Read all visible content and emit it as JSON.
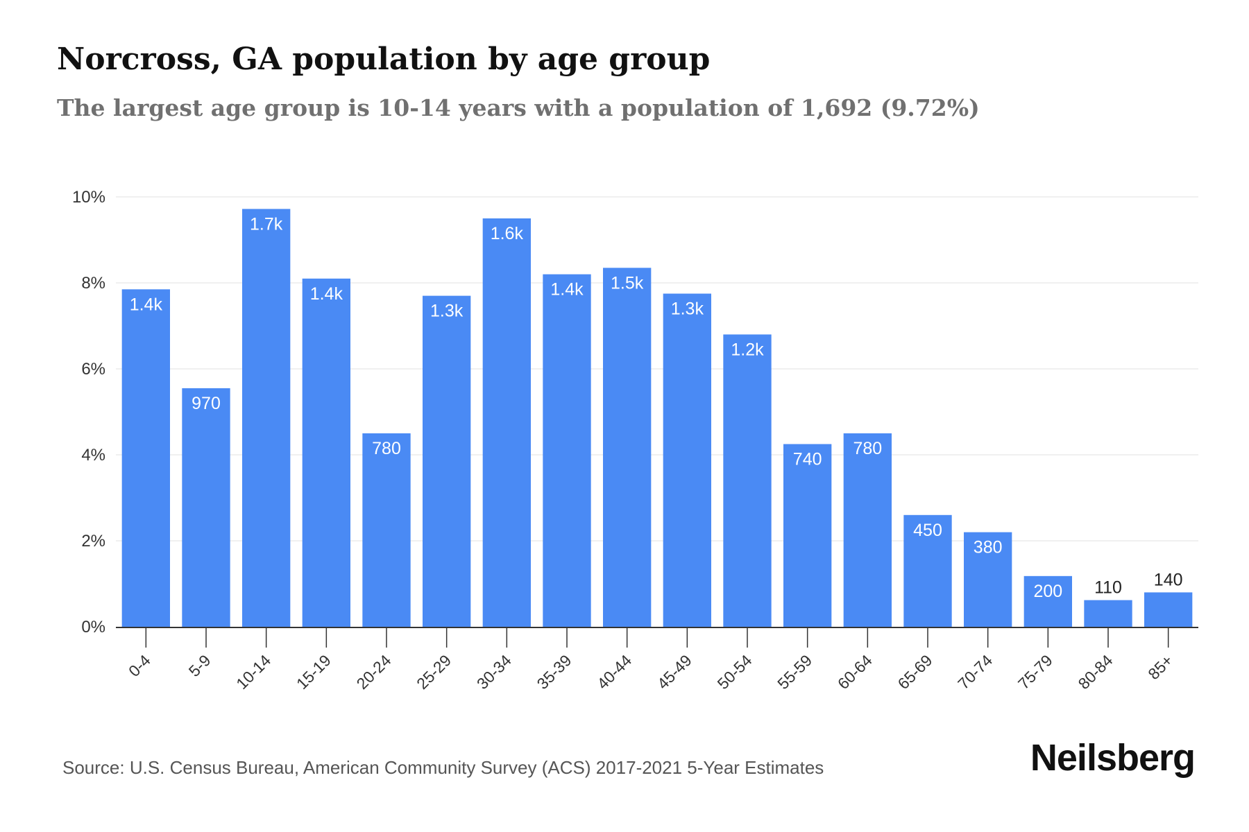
{
  "header": {
    "title": "Norcross, GA population by age group",
    "subtitle": "The largest age group is 10-14 years with a population of 1,692 (9.72%)"
  },
  "footer": {
    "source": "Source: U.S. Census Bureau, American Community Survey (ACS) 2017-2021 5-Year Estimates",
    "brand": "Neilsberg"
  },
  "colors": {
    "bar": "#4a8af4",
    "grid": "#ececec",
    "axis": "#333333",
    "label_inside": "#ffffff",
    "label_outside": "#222222"
  },
  "chart_data": {
    "type": "bar",
    "title": "Norcross, GA population by age group",
    "subtitle": "The largest age group is 10-14 years with a population of 1,692 (9.72%)",
    "xlabel": "",
    "ylabel": "",
    "ylim": [
      0,
      10
    ],
    "yticks": [
      0,
      2,
      4,
      6,
      8,
      10
    ],
    "ytick_labels": [
      "0%",
      "2%",
      "4%",
      "6%",
      "8%",
      "10%"
    ],
    "grid": true,
    "categories": [
      "0-4",
      "5-9",
      "10-14",
      "15-19",
      "20-24",
      "25-29",
      "30-34",
      "35-39",
      "40-44",
      "45-49",
      "50-54",
      "55-59",
      "60-64",
      "65-69",
      "70-74",
      "75-79",
      "80-84",
      "85+"
    ],
    "values": [
      7.85,
      5.55,
      9.72,
      8.1,
      4.5,
      7.7,
      9.5,
      8.2,
      8.35,
      7.75,
      6.8,
      4.25,
      4.5,
      2.6,
      2.2,
      1.18,
      0.62,
      0.8
    ],
    "data_labels": [
      "1.4k",
      "970",
      "1.7k",
      "1.4k",
      "780",
      "1.3k",
      "1.6k",
      "1.4k",
      "1.5k",
      "1.3k",
      "1.2k",
      "740",
      "780",
      "450",
      "380",
      "200",
      "110",
      "140"
    ]
  }
}
